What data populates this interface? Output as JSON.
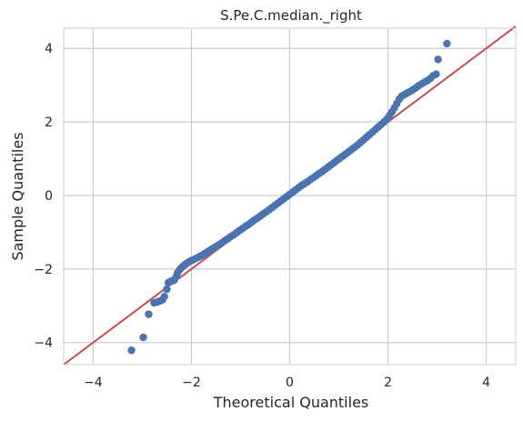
{
  "chart_data": {
    "type": "scatter",
    "title": "S.Pe.C.median._right",
    "xlabel": "Theoretical Quantiles",
    "ylabel": "Sample Quantiles",
    "xlim": [
      -4.6,
      4.6
    ],
    "ylim": [
      -4.6,
      4.55
    ],
    "xticks": [
      -4,
      -2,
      0,
      2,
      4
    ],
    "yticks": [
      -4,
      -2,
      0,
      2,
      4
    ],
    "xtick_labels": [
      "−4",
      "−2",
      "0",
      "2",
      "4"
    ],
    "ytick_labels": [
      "−4",
      "−2",
      "0",
      "2",
      "4"
    ],
    "grid": true,
    "reference_line": {
      "kind": "45-degree",
      "color": "#c44e52"
    },
    "points_color": "#4c72b0",
    "points": [
      [
        -3.22,
        -4.21
      ],
      [
        -2.98,
        -3.86
      ],
      [
        -2.87,
        -3.23
      ],
      [
        -2.76,
        -2.92
      ],
      [
        -2.7,
        -2.9
      ],
      [
        -2.64,
        -2.87
      ],
      [
        -2.59,
        -2.84
      ],
      [
        -2.55,
        -2.75
      ],
      [
        -2.5,
        -2.55
      ],
      [
        -2.47,
        -2.37
      ],
      [
        -2.43,
        -2.34
      ],
      [
        -2.39,
        -2.32
      ],
      [
        -2.35,
        -2.3
      ],
      [
        -2.31,
        -2.21
      ],
      [
        -2.28,
        -2.1
      ],
      [
        -2.24,
        -2.02
      ],
      [
        -2.2,
        -1.96
      ],
      [
        -2.16,
        -1.91
      ],
      [
        -2.12,
        -1.87
      ],
      [
        -2.08,
        -1.83
      ],
      [
        -2.03,
        -1.79
      ],
      [
        -1.98,
        -1.76
      ],
      [
        -1.92,
        -1.72
      ],
      [
        -1.86,
        -1.68
      ],
      [
        -1.8,
        -1.64
      ],
      [
        -1.74,
        -1.59
      ],
      [
        -1.68,
        -1.54
      ],
      [
        -1.62,
        -1.49
      ],
      [
        -1.56,
        -1.44
      ],
      [
        -1.5,
        -1.39
      ],
      [
        -1.44,
        -1.34
      ],
      [
        -1.38,
        -1.29
      ],
      [
        -1.32,
        -1.23
      ],
      [
        -1.26,
        -1.18
      ],
      [
        -1.2,
        -1.12
      ],
      [
        -1.14,
        -1.07
      ],
      [
        -1.08,
        -1.01
      ],
      [
        -1.02,
        -0.95
      ],
      [
        -0.96,
        -0.9
      ],
      [
        -0.9,
        -0.84
      ],
      [
        -0.84,
        -0.79
      ],
      [
        -0.78,
        -0.73
      ],
      [
        -0.72,
        -0.67
      ],
      [
        -0.66,
        -0.62
      ],
      [
        -0.6,
        -0.56
      ],
      [
        -0.54,
        -0.5
      ],
      [
        -0.48,
        -0.45
      ],
      [
        -0.42,
        -0.39
      ],
      [
        -0.36,
        -0.33
      ],
      [
        -0.3,
        -0.27
      ],
      [
        -0.24,
        -0.21
      ],
      [
        -0.18,
        -0.15
      ],
      [
        -0.12,
        -0.09
      ],
      [
        -0.06,
        -0.03
      ],
      [
        0.0,
        0.03
      ],
      [
        0.06,
        0.09
      ],
      [
        0.12,
        0.15
      ],
      [
        0.18,
        0.21
      ],
      [
        0.24,
        0.27
      ],
      [
        0.3,
        0.32
      ],
      [
        0.36,
        0.37
      ],
      [
        0.42,
        0.43
      ],
      [
        0.48,
        0.48
      ],
      [
        0.54,
        0.54
      ],
      [
        0.6,
        0.6
      ],
      [
        0.66,
        0.65
      ],
      [
        0.72,
        0.71
      ],
      [
        0.78,
        0.77
      ],
      [
        0.84,
        0.83
      ],
      [
        0.9,
        0.89
      ],
      [
        0.96,
        0.95
      ],
      [
        1.02,
        1.01
      ],
      [
        1.08,
        1.07
      ],
      [
        1.14,
        1.13
      ],
      [
        1.2,
        1.19
      ],
      [
        1.26,
        1.25
      ],
      [
        1.32,
        1.31
      ],
      [
        1.38,
        1.37
      ],
      [
        1.44,
        1.44
      ],
      [
        1.5,
        1.51
      ],
      [
        1.56,
        1.58
      ],
      [
        1.62,
        1.65
      ],
      [
        1.68,
        1.72
      ],
      [
        1.74,
        1.79
      ],
      [
        1.8,
        1.86
      ],
      [
        1.86,
        1.93
      ],
      [
        1.92,
        2.0
      ],
      [
        1.98,
        2.08
      ],
      [
        2.03,
        2.17
      ],
      [
        2.08,
        2.27
      ],
      [
        2.13,
        2.38
      ],
      [
        2.18,
        2.5
      ],
      [
        2.23,
        2.62
      ],
      [
        2.28,
        2.7
      ],
      [
        2.33,
        2.74
      ],
      [
        2.38,
        2.78
      ],
      [
        2.44,
        2.82
      ],
      [
        2.5,
        2.87
      ],
      [
        2.56,
        2.92
      ],
      [
        2.62,
        2.98
      ],
      [
        2.68,
        3.03
      ],
      [
        2.74,
        3.08
      ],
      [
        2.8,
        3.12
      ],
      [
        2.86,
        3.18
      ],
      [
        2.92,
        3.26
      ],
      [
        2.98,
        3.3
      ],
      [
        3.02,
        3.7
      ],
      [
        3.2,
        4.13
      ]
    ]
  }
}
